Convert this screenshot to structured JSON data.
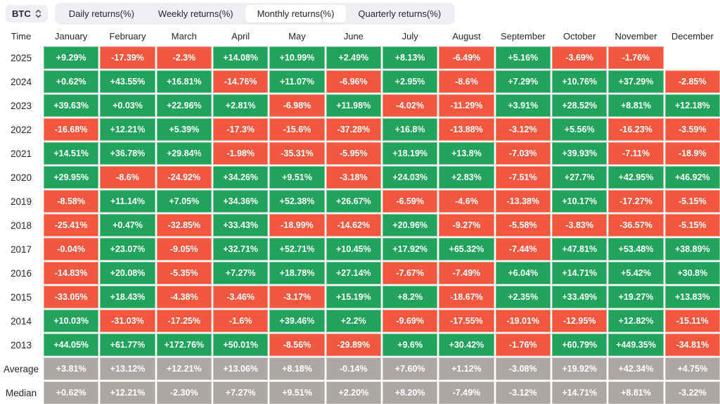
{
  "toolbar": {
    "symbol": "BTC",
    "tabs": [
      {
        "label": "Daily returns(%)",
        "active": false
      },
      {
        "label": "Weekly returns(%)",
        "active": false
      },
      {
        "label": "Monthly returns(%)",
        "active": true
      },
      {
        "label": "Quarterly returns(%)",
        "active": false
      }
    ]
  },
  "colors": {
    "positive": "#22a35d",
    "negative": "#f4573f",
    "summary": "#aca7a4",
    "chip_bg": "#eeeff2"
  },
  "icons": {
    "symbol_selector": "updown-chevron-icon"
  },
  "chart_data": {
    "type": "heatmap",
    "title": "BTC Monthly returns(%)",
    "legend_position": "none",
    "grid": false,
    "columns": [
      "Time",
      "January",
      "February",
      "March",
      "April",
      "May",
      "June",
      "July",
      "August",
      "September",
      "October",
      "November",
      "December"
    ],
    "rows": [
      {
        "label": "2025",
        "kind": "year",
        "values": [
          "+9.29%",
          "-17.39%",
          "-2.3%",
          "+14.08%",
          "+10.99%",
          "+2.49%",
          "+8.13%",
          "-6.49%",
          "+5.16%",
          "-3.69%",
          "-1.76%",
          ""
        ]
      },
      {
        "label": "2024",
        "kind": "year",
        "values": [
          "+0.62%",
          "+43.55%",
          "+16.81%",
          "-14.76%",
          "+11.07%",
          "-6.96%",
          "+2.95%",
          "-8.6%",
          "+7.29%",
          "+10.76%",
          "+37.29%",
          "-2.85%"
        ]
      },
      {
        "label": "2023",
        "kind": "year",
        "values": [
          "+39.63%",
          "+0.03%",
          "+22.96%",
          "+2.81%",
          "-6.98%",
          "+11.98%",
          "-4.02%",
          "-11.29%",
          "+3.91%",
          "+28.52%",
          "+8.81%",
          "+12.18%"
        ]
      },
      {
        "label": "2022",
        "kind": "year",
        "values": [
          "-16.68%",
          "+12.21%",
          "+5.39%",
          "-17.3%",
          "-15.6%",
          "-37.28%",
          "+16.8%",
          "-13.88%",
          "-3.12%",
          "+5.56%",
          "-16.23%",
          "-3.59%"
        ]
      },
      {
        "label": "2021",
        "kind": "year",
        "values": [
          "+14.51%",
          "+36.78%",
          "+29.84%",
          "-1.98%",
          "-35.31%",
          "-5.95%",
          "+18.19%",
          "+13.8%",
          "-7.03%",
          "+39.93%",
          "-7.11%",
          "-18.9%"
        ]
      },
      {
        "label": "2020",
        "kind": "year",
        "values": [
          "+29.95%",
          "-8.6%",
          "-24.92%",
          "+34.26%",
          "+9.51%",
          "-3.18%",
          "+24.03%",
          "+2.83%",
          "-7.51%",
          "+27.7%",
          "+42.95%",
          "+46.92%"
        ]
      },
      {
        "label": "2019",
        "kind": "year",
        "values": [
          "-8.58%",
          "+11.14%",
          "+7.05%",
          "+34.36%",
          "+52.38%",
          "+26.67%",
          "-6.59%",
          "-4.6%",
          "-13.38%",
          "+10.17%",
          "-17.27%",
          "-5.15%"
        ]
      },
      {
        "label": "2018",
        "kind": "year",
        "values": [
          "-25.41%",
          "+0.47%",
          "-32.85%",
          "+33.43%",
          "-18.99%",
          "-14.62%",
          "+20.96%",
          "-9.27%",
          "-5.58%",
          "-3.83%",
          "-36.57%",
          "-5.15%"
        ]
      },
      {
        "label": "2017",
        "kind": "year",
        "values": [
          "-0.04%",
          "+23.07%",
          "-9.05%",
          "+32.71%",
          "+52.71%",
          "+10.45%",
          "+17.92%",
          "+65.32%",
          "-7.44%",
          "+47.81%",
          "+53.48%",
          "+38.89%"
        ]
      },
      {
        "label": "2016",
        "kind": "year",
        "values": [
          "-14.83%",
          "+20.08%",
          "-5.35%",
          "+7.27%",
          "+18.78%",
          "+27.14%",
          "-7.67%",
          "-7.49%",
          "+6.04%",
          "+14.71%",
          "+5.42%",
          "+30.8%"
        ]
      },
      {
        "label": "2015",
        "kind": "year",
        "values": [
          "-33.05%",
          "+18.43%",
          "-4.38%",
          "-3.46%",
          "-3.17%",
          "+15.19%",
          "+8.2%",
          "-18.67%",
          "+2.35%",
          "+33.49%",
          "+19.27%",
          "+13.83%"
        ]
      },
      {
        "label": "2014",
        "kind": "year",
        "values": [
          "+10.03%",
          "-31.03%",
          "-17.25%",
          "-1.6%",
          "+39.46%",
          "+2.2%",
          "-9.69%",
          "-17.55%",
          "-19.01%",
          "-12.95%",
          "+12.82%",
          "-15.11%"
        ]
      },
      {
        "label": "2013",
        "kind": "year",
        "values": [
          "+44.05%",
          "+61.77%",
          "+172.76%",
          "+50.01%",
          "-8.56%",
          "-29.89%",
          "+9.6%",
          "+30.42%",
          "-1.76%",
          "+60.79%",
          "+449.35%",
          "-34.81%"
        ]
      },
      {
        "label": "Average",
        "kind": "summary",
        "values": [
          "+3.81%",
          "+13.12%",
          "+12.21%",
          "+13.06%",
          "+8.18%",
          "-0.14%",
          "+7.60%",
          "+1.12%",
          "-3.08%",
          "+19.92%",
          "+42.34%",
          "+4.75%"
        ]
      },
      {
        "label": "Median",
        "kind": "summary",
        "values": [
          "+0.62%",
          "+12.21%",
          "-2.30%",
          "+7.27%",
          "+9.51%",
          "+2.20%",
          "+8.20%",
          "-7.49%",
          "-3.12%",
          "+14.71%",
          "+8.81%",
          "-3.22%"
        ]
      }
    ]
  }
}
